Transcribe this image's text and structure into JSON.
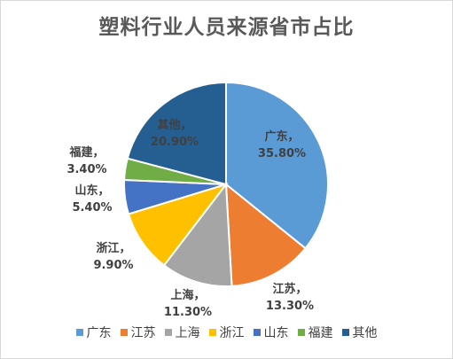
{
  "chart_data": {
    "type": "pie",
    "title": "塑料行业人员来源省市占比",
    "slices": [
      {
        "name": "广东",
        "value": 35.8,
        "label_value": "35.80%",
        "color": "#5b9bd5",
        "label_color": "#404040",
        "label_inside": true
      },
      {
        "name": "江苏",
        "value": 13.3,
        "label_value": "13.30%",
        "color": "#ed7d31",
        "label_color": "#404040",
        "label_inside": false
      },
      {
        "name": "上海",
        "value": 11.3,
        "label_value": "11.30%",
        "color": "#a5a5a5",
        "label_color": "#404040",
        "label_inside": false
      },
      {
        "name": "浙江",
        "value": 9.9,
        "label_value": "9.90%",
        "color": "#ffc000",
        "label_color": "#404040",
        "label_inside": false
      },
      {
        "name": "山东",
        "value": 5.4,
        "label_value": "5.40%",
        "color": "#4472c4",
        "label_color": "#404040",
        "label_inside": false
      },
      {
        "name": "福建",
        "value": 3.4,
        "label_value": "3.40%",
        "color": "#70ad47",
        "label_color": "#404040",
        "label_inside": false
      },
      {
        "name": "其他",
        "value": 20.9,
        "label_value": "20.90%",
        "color": "#255e91",
        "label_color": "#404040",
        "label_inside": true
      }
    ],
    "legend_position": "bottom"
  }
}
